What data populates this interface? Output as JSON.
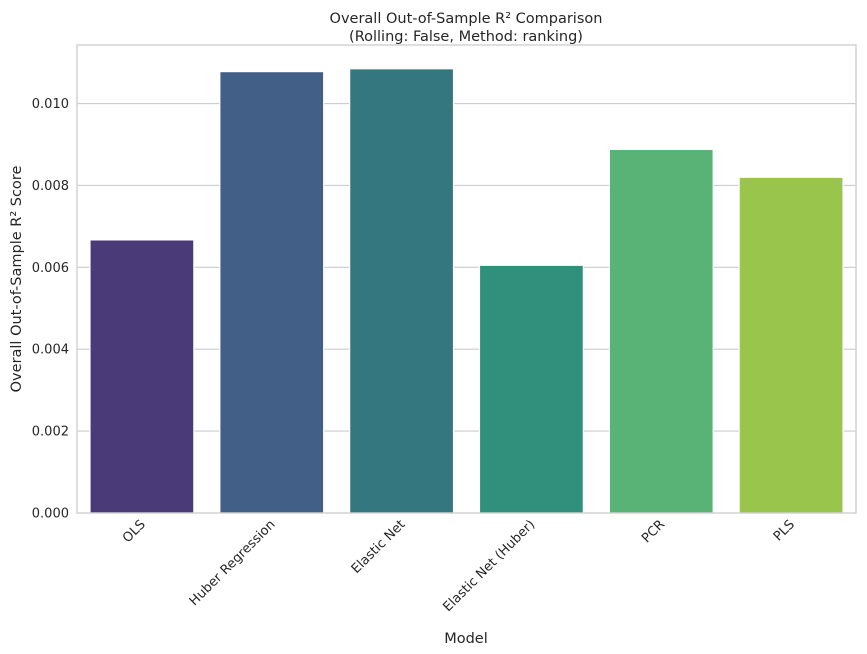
{
  "chart_data": {
    "type": "bar",
    "title": "Overall Out-of-Sample R² Comparison",
    "subtitle": "(Rolling: False, Method: ranking)",
    "xlabel": "Model",
    "ylabel": "Overall Out-of-Sample R² Score",
    "categories": [
      "OLS",
      "Huber Regression",
      "Elastic Net",
      "Elastic Net (Huber)",
      "PCR",
      "PLS"
    ],
    "values": [
      0.00667,
      0.01078,
      0.01085,
      0.00605,
      0.00888,
      0.0082
    ],
    "colors": [
      "#4a3a78",
      "#425f88",
      "#35777e",
      "#30907c",
      "#5ab376",
      "#99c54c"
    ],
    "ylim": [
      0,
      0.01143
    ],
    "yticks": [
      0.0,
      0.002,
      0.004,
      0.006,
      0.008,
      0.01
    ],
    "ytick_labels": [
      "0.000",
      "0.002",
      "0.004",
      "0.006",
      "0.008",
      "0.010"
    ],
    "grid": true,
    "grid_axis": "y",
    "legend": false
  }
}
